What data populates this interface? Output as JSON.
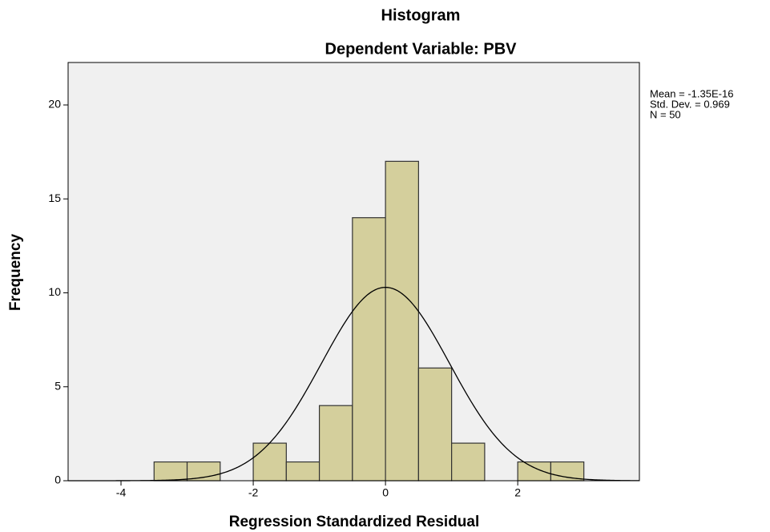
{
  "chart_data": {
    "type": "histogram",
    "title": "Histogram",
    "subtitle": "Dependent Variable: PBV",
    "xlabel": "Regression Standardized Residual",
    "ylabel": "Frequency",
    "bins": [
      -3.5,
      -3,
      -2.5,
      -2,
      -1.5,
      -1,
      -0.5,
      0,
      0.5,
      1,
      1.5,
      2,
      2.5,
      3
    ],
    "counts": [
      1,
      1,
      0,
      2,
      1,
      4,
      14,
      17,
      6,
      2,
      0,
      1,
      1
    ],
    "color": "#d4cf9c",
    "xlim": [
      -4.8,
      3.84
    ],
    "ylim": [
      0,
      22.26
    ],
    "xticks": [
      -4,
      -2,
      0,
      2
    ],
    "yticks": [
      0,
      5,
      10,
      15,
      20
    ],
    "stats": [
      {
        "value": -1.35e-16,
        "label": "Mean = -1.35E-16"
      },
      {
        "value": 0.969,
        "label": "Std. Dev. = 0.969"
      },
      {
        "value": 50,
        "label": "N = 50"
      }
    ]
  }
}
